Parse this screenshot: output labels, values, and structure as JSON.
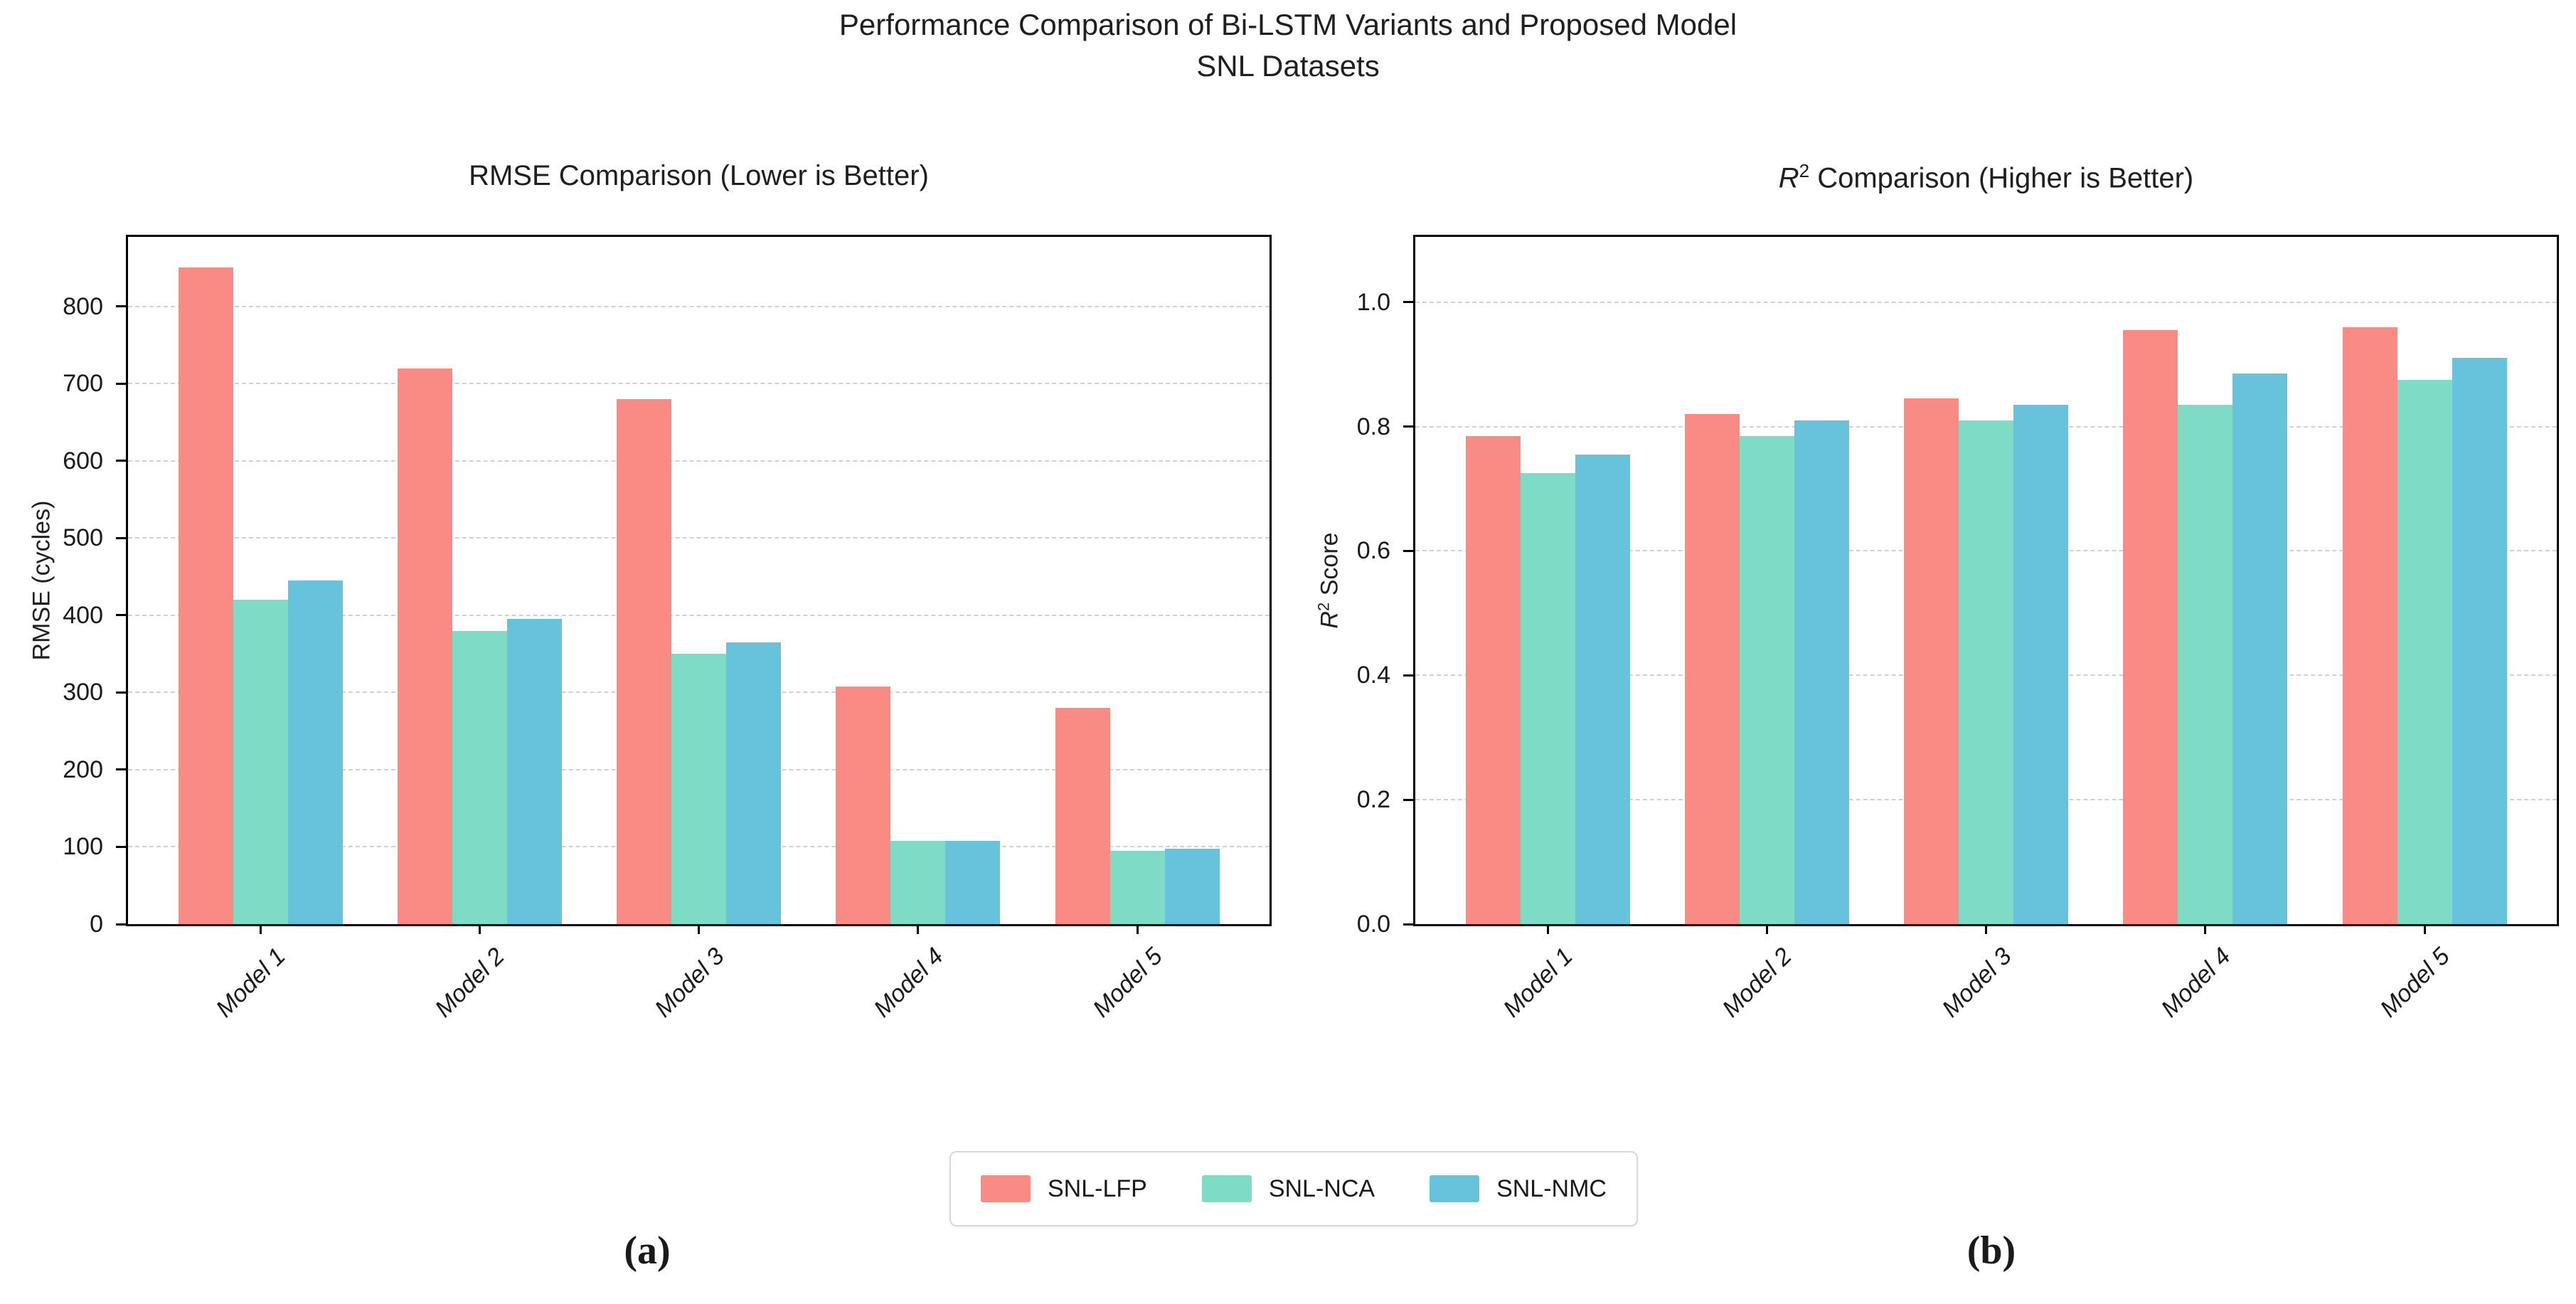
{
  "figure": {
    "suptitle_line1": "Performance Comparison of Bi-LSTM Variants and Proposed Model",
    "suptitle_line2": "SNL Datasets",
    "panel_a_label": "(a)",
    "panel_b_label": "(b)"
  },
  "colors": {
    "lfp": "#F98B84",
    "nca": "#7DDBC6",
    "nmc": "#67C2DB",
    "grid": "#d2d2d2",
    "axis": "#000000"
  },
  "legend": [
    {
      "label": "SNL-LFP",
      "color": "#F98B84"
    },
    {
      "label": "SNL-NCA",
      "color": "#7DDBC6"
    },
    {
      "label": "SNL-NMC",
      "color": "#67C2DB"
    }
  ],
  "chart_data": [
    {
      "type": "bar",
      "title": "RMSE Comparison (Lower is Better)",
      "ylabel": "RMSE (cycles)",
      "xlabel": "",
      "categories": [
        "Model 1",
        "Model 2",
        "Model 3",
        "Model 4",
        "Model 5"
      ],
      "series": [
        {
          "name": "SNL-LFP",
          "color": "#F98B84",
          "values": [
            850,
            720,
            680,
            308,
            280
          ]
        },
        {
          "name": "SNL-NCA",
          "color": "#7DDBC6",
          "values": [
            420,
            380,
            350,
            108,
            95
          ]
        },
        {
          "name": "SNL-NMC",
          "color": "#67C2DB",
          "values": [
            445,
            395,
            365,
            108,
            98
          ]
        }
      ],
      "ylim": [
        0,
        890
      ],
      "ytick_values": [
        0,
        100,
        200,
        300,
        400,
        500,
        600,
        700,
        800
      ],
      "ytick_labels": [
        "0",
        "100",
        "200",
        "300",
        "400",
        "500",
        "600",
        "700",
        "800"
      ],
      "grid": "horizontal-dashed",
      "legend_position": "figure-bottom-center"
    },
    {
      "type": "bar",
      "title": "R² Comparison (Higher is Better)",
      "title_parts": {
        "var": "R",
        "sup": "2",
        "rest": " Comparison (Higher is Better)"
      },
      "ylabel": "R² Score",
      "ylabel_parts": {
        "var": "R",
        "sup": "2",
        "rest": " Score"
      },
      "xlabel": "",
      "categories": [
        "Model 1",
        "Model 2",
        "Model 3",
        "Model 4",
        "Model 5"
      ],
      "series": [
        {
          "name": "SNL-LFP",
          "color": "#F98B84",
          "values": [
            0.785,
            0.82,
            0.845,
            0.955,
            0.96
          ]
        },
        {
          "name": "SNL-NCA",
          "color": "#7DDBC6",
          "values": [
            0.725,
            0.785,
            0.81,
            0.835,
            0.875
          ]
        },
        {
          "name": "SNL-NMC",
          "color": "#67C2DB",
          "values": [
            0.755,
            0.81,
            0.835,
            0.885,
            0.91
          ]
        }
      ],
      "ylim": [
        0,
        1.105
      ],
      "ytick_values": [
        0,
        0.2,
        0.4,
        0.6,
        0.8,
        1.0
      ],
      "ytick_labels": [
        "0.0",
        "0.2",
        "0.4",
        "0.6",
        "0.8",
        "1.0"
      ],
      "grid": "horizontal-dashed",
      "legend_position": "figure-bottom-center"
    }
  ]
}
